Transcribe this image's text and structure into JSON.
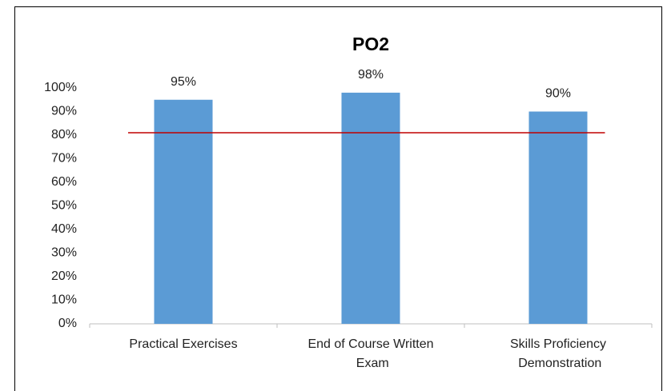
{
  "chart_data": {
    "type": "bar",
    "title": "PO2",
    "categories": [
      "Practical Exercises",
      "End of Course Written Exam",
      "Skills Proficiency Demonstration"
    ],
    "values": [
      95,
      98,
      90
    ],
    "value_labels": [
      "95%",
      "98%",
      "90%"
    ],
    "color": "#5b9bd5",
    "ylim": [
      0,
      100
    ],
    "yticks": [
      {
        "value": 0,
        "label": "0%"
      },
      {
        "value": 10,
        "label": "10%"
      },
      {
        "value": 20,
        "label": "20%"
      },
      {
        "value": 30,
        "label": "30%"
      },
      {
        "value": 40,
        "label": "40%"
      },
      {
        "value": 50,
        "label": "50%"
      },
      {
        "value": 60,
        "label": "60%"
      },
      {
        "value": 70,
        "label": "70%"
      },
      {
        "value": 80,
        "label": "80%"
      },
      {
        "value": 90,
        "label": "90%"
      },
      {
        "value": 100,
        "label": "100%"
      }
    ],
    "reference_line": {
      "value": 81,
      "color": "#c00000"
    },
    "grid": false
  }
}
